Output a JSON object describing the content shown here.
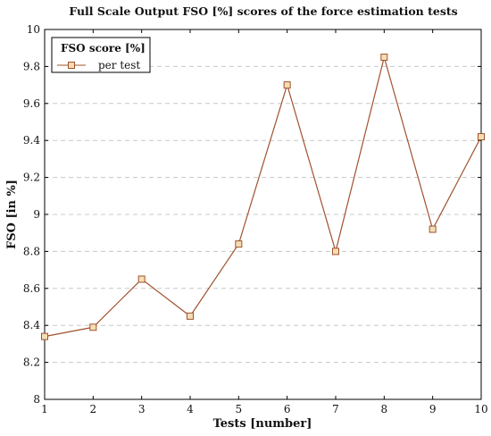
{
  "chart_data": {
    "type": "line",
    "title": "Full Scale Output FSO [%] scores of the force estimation tests",
    "xlabel": "Tests [number]",
    "ylabel": "FSO [in %]",
    "xlim": [
      1,
      10
    ],
    "ylim": [
      8,
      10
    ],
    "x_ticks": [
      "1",
      "2",
      "3",
      "4",
      "5",
      "6",
      "7",
      "8",
      "9",
      "10"
    ],
    "y_ticks": [
      "8",
      "8.2",
      "8.4",
      "8.6",
      "8.8",
      "9",
      "9.2",
      "9.4",
      "9.6",
      "9.8",
      "10"
    ],
    "grid": "horizontal dashed",
    "legend": {
      "title": "FSO score [%]",
      "placement": "top-left"
    },
    "series": [
      {
        "name": "per test",
        "color": "#a0522d",
        "marker": "square",
        "x": [
          1,
          2,
          3,
          4,
          5,
          6,
          7,
          8,
          9,
          10
        ],
        "y": [
          8.34,
          8.39,
          8.65,
          8.45,
          8.84,
          9.7,
          8.8,
          9.85,
          8.92,
          9.42
        ]
      }
    ]
  }
}
